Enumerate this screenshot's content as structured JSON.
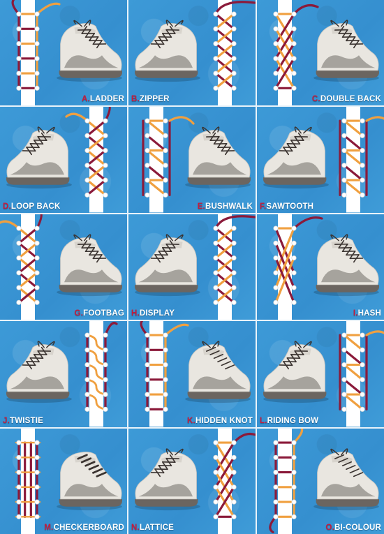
{
  "colors": {
    "background": "#3a97d4",
    "lace_crimson": "#8b1a3a",
    "lace_orange": "#f0a040",
    "shoe_white": "#e9e6e0",
    "shoe_grey": "#9a9690",
    "sole": "#6b6560",
    "shoelace_dark": "#3a3330",
    "label_letter": "#c41c3e",
    "label_text": "#ffffff"
  },
  "icons": [
    "sneaker-icon",
    "lacing-diagram-icon",
    "eyelet-icon"
  ],
  "methods": [
    {
      "letter": "A.",
      "name": "LADDER",
      "pattern": "ladder",
      "diagram_side": "left",
      "label_align": "right"
    },
    {
      "letter": "B.",
      "name": "ZIPPER",
      "pattern": "zipper",
      "diagram_side": "right",
      "label_align": "left"
    },
    {
      "letter": "C.",
      "name": "DOUBLE BACK",
      "pattern": "doubleback",
      "diagram_side": "left",
      "label_align": "right"
    },
    {
      "letter": "D.",
      "name": "LOOP BACK",
      "pattern": "loopback",
      "diagram_side": "right",
      "label_align": "left"
    },
    {
      "letter": "E.",
      "name": "BUSHWALK",
      "pattern": "bushwalk",
      "diagram_side": "left",
      "label_align": "right"
    },
    {
      "letter": "F.",
      "name": "SAWTOOTH",
      "pattern": "sawtooth",
      "diagram_side": "right",
      "label_align": "left"
    },
    {
      "letter": "G.",
      "name": "FOOTBAG",
      "pattern": "footbag",
      "diagram_side": "left",
      "label_align": "right"
    },
    {
      "letter": "H.",
      "name": "DISPLAY",
      "pattern": "display",
      "diagram_side": "right",
      "label_align": "left"
    },
    {
      "letter": "I.",
      "name": "HASH",
      "pattern": "hash",
      "diagram_side": "left",
      "label_align": "right"
    },
    {
      "letter": "J.",
      "name": "TWISTIE",
      "pattern": "twistie",
      "diagram_side": "right",
      "label_align": "left"
    },
    {
      "letter": "K.",
      "name": "HIDDEN KNOT",
      "pattern": "hiddenknot",
      "diagram_side": "left",
      "label_align": "right"
    },
    {
      "letter": "L.",
      "name": "RIDING BOW",
      "pattern": "ridingbow",
      "diagram_side": "right",
      "label_align": "left"
    },
    {
      "letter": "M.",
      "name": "CHECKERBOARD",
      "pattern": "checkerboard",
      "diagram_side": "left",
      "label_align": "right"
    },
    {
      "letter": "N.",
      "name": "LATTICE",
      "pattern": "lattice",
      "diagram_side": "right",
      "label_align": "left"
    },
    {
      "letter": "O.",
      "name": "BI-COLOUR",
      "pattern": "bicolour",
      "diagram_side": "left",
      "label_align": "right"
    }
  ]
}
